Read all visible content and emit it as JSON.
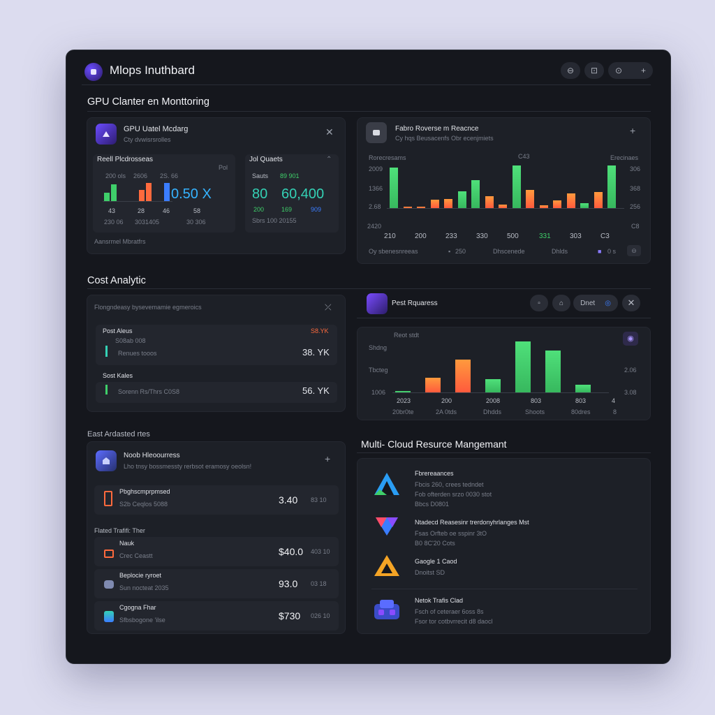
{
  "app": {
    "title": "Mlops Inuthbard",
    "window_buttons": [
      "⊖",
      "⊡",
      "⊙",
      "+"
    ]
  },
  "sections": {
    "gpu": "GPU Clanter en Monttoring",
    "cost": "Cost Analytic",
    "cost2": "East Ardasted rtes",
    "multicloud": "Multi- Cloud Resurce Mangemant"
  },
  "gpu_util": {
    "title": "GPU Uatel Mcdarg",
    "subtitle": "Cty dvwisrsrolles",
    "left_label": "Reell Plcdrosseas",
    "left_tick_labels": [
      "200 ols",
      "2606",
      "2S. 66"
    ],
    "left_big": "0.50 X",
    "left_x_labels": [
      "43",
      "28",
      "46",
      "58"
    ],
    "left_footer": [
      "230 06",
      "3031405",
      "30 306"
    ],
    "left_note": "Pol",
    "right_label": "Jol Quaets",
    "right_small": [
      "Sauts",
      "89 901"
    ],
    "right_big_left": "80",
    "right_big": "60,400",
    "right_sub": [
      "200",
      "169",
      "909"
    ],
    "right_footer": "Sbrs  100 20155",
    "footnote": "Aansrmel Mbratfrs",
    "colors": {
      "green": "#3fcf6a",
      "orange": "#ff6a3d",
      "blue": "#3b7dff",
      "teal": "#34d1b5"
    }
  },
  "fabric": {
    "title": "Fabro Roverse m Reacnce",
    "subtitle": "Cy hqs Beusacenfs Obr ecenjmiets",
    "y_left_title": "Rorecresams",
    "y_right_title": "Erecinaes",
    "top_mid_label": "C43",
    "y_left": [
      "2009",
      "1366",
      "2.68",
      "2420"
    ],
    "y_right": [
      "306",
      "368",
      "256",
      "C8"
    ],
    "x_labels": [
      "210",
      "200",
      "233",
      "330",
      "500",
      "331",
      "303",
      "C3"
    ],
    "legend": [
      "Oy sbenesnreeas",
      "250",
      "Dhscenede",
      "Dhlds",
      "0 s"
    ],
    "chart_data": {
      "type": "bar",
      "values": [
        95,
        3,
        4,
        20,
        22,
        40,
        65,
        28,
        8,
        100,
        42,
        6,
        18,
        35,
        12,
        38,
        100
      ],
      "colors": [
        "g",
        "o",
        "o",
        "o",
        "o",
        "g",
        "g",
        "o",
        "o",
        "g",
        "o",
        "o",
        "o",
        "o",
        "g",
        "o",
        "g"
      ]
    }
  },
  "cost_panel": {
    "header": "Flongndeasy bysevemamie egmeroics",
    "row1_title": "Post Aleus",
    "row1_flag": "S8.YK",
    "row1_sub": "S08ab 008",
    "row1_desc": "Renues tooos",
    "row1_value": "38. YK",
    "row2_title": "Sost Kales",
    "row2_desc": "Sorenn Rs/Thrs C0S8",
    "row2_value": "56. YK"
  },
  "pest": {
    "title": "Pest Rquaress",
    "pill": "Dnet",
    "y_title": "Reot stdt",
    "y_left": [
      "Shdng",
      "Tbcteg",
      "1006"
    ],
    "y_right": [
      "2.06",
      "3.08"
    ],
    "x_labels": [
      "2023",
      "200",
      "2008",
      "803",
      "803",
      "4"
    ],
    "x_bottom": [
      "20br0te",
      "2A 0tds",
      "Dhdds",
      "Shoots",
      "80dres",
      "8"
    ],
    "chart_data": {
      "type": "bar",
      "values": [
        2,
        22,
        48,
        20,
        75,
        62,
        11
      ],
      "colors": [
        "g",
        "o",
        "o",
        "g",
        "g",
        "g",
        "g"
      ]
    }
  },
  "noob": {
    "title": "Noob Hleoourress",
    "subtitle": "Lho tnsy bossmessty rerbsot eramosy oeolsn!",
    "row1_title": "Pbghscmprpmsed",
    "row1_sub": "S2b Ceqlos 5088",
    "row1_price": "3.40",
    "row1_tag": "83 10",
    "group_label": "Flated Trafifi: Ther",
    "row2_title": "Nauk",
    "row2_sub": "Crec Ceastt",
    "row2_price": "$40.0",
    "row2_tag": "403 10",
    "row3_title": "Beplocie ryroet",
    "row3_sub": "Sun nocteat 2035",
    "row3_price": "93.0",
    "row3_tag": "03 18",
    "row4_title": "Cgogna Fhar",
    "row4_sub": "Sfbsbogone 'ilse",
    "row4_price": "$730",
    "row4_tag": "026 10"
  },
  "clouds": [
    {
      "name": "Fbrereaances",
      "lines": [
        "Fbcis 260, crees tedndet",
        "Fob ofterden srzo 0030 stot",
        "Bbcs D0801"
      ],
      "icon": "azure-like-icon"
    },
    {
      "name": "Ntadecd Reasesinr trerdonyhrlanges    Mst",
      "lines": [
        "Fsas Orfteb oe sspinr 3tO",
        "B0 8C'20 Cots"
      ],
      "icon": "multicloud-icon"
    },
    {
      "name": "Gaogle 1 Caod",
      "lines": [
        "Dnoitst SD"
      ],
      "icon": "gcp-icon"
    },
    {
      "name": "Netok Trafis Clad",
      "lines": [
        "Fsch of ceteraer 6oss 8s",
        "Fsor tor cotbvrrecit d8 daocl"
      ],
      "icon": "network-icon"
    }
  ]
}
